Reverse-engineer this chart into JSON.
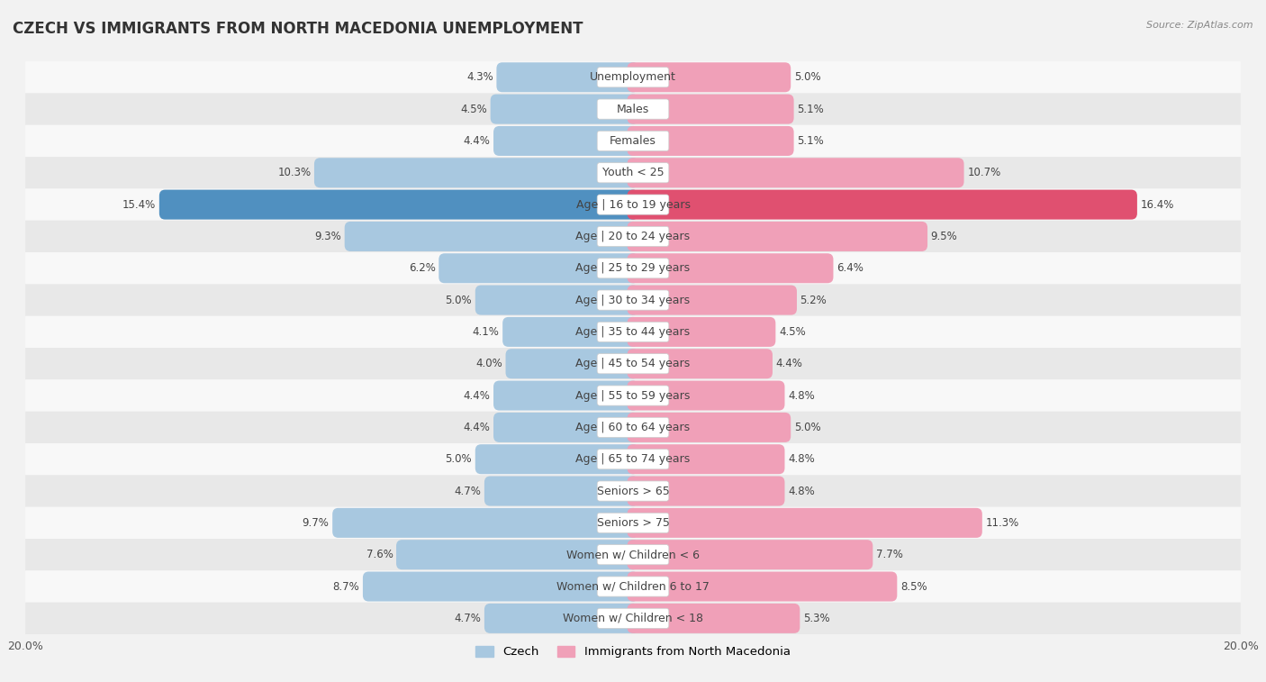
{
  "title": "CZECH VS IMMIGRANTS FROM NORTH MACEDONIA UNEMPLOYMENT",
  "source": "Source: ZipAtlas.com",
  "categories": [
    "Unemployment",
    "Males",
    "Females",
    "Youth < 25",
    "Age | 16 to 19 years",
    "Age | 20 to 24 years",
    "Age | 25 to 29 years",
    "Age | 30 to 34 years",
    "Age | 35 to 44 years",
    "Age | 45 to 54 years",
    "Age | 55 to 59 years",
    "Age | 60 to 64 years",
    "Age | 65 to 74 years",
    "Seniors > 65",
    "Seniors > 75",
    "Women w/ Children < 6",
    "Women w/ Children 6 to 17",
    "Women w/ Children < 18"
  ],
  "czech_values": [
    4.3,
    4.5,
    4.4,
    10.3,
    15.4,
    9.3,
    6.2,
    5.0,
    4.1,
    4.0,
    4.4,
    4.4,
    5.0,
    4.7,
    9.7,
    7.6,
    8.7,
    4.7
  ],
  "immigrant_values": [
    5.0,
    5.1,
    5.1,
    10.7,
    16.4,
    9.5,
    6.4,
    5.2,
    4.5,
    4.4,
    4.8,
    5.0,
    4.8,
    4.8,
    11.3,
    7.7,
    8.5,
    5.3
  ],
  "czech_color": "#a8c8e0",
  "immigrant_color": "#f0a0b8",
  "czech_highlight_color": "#5090c0",
  "immigrant_highlight_color": "#e05070",
  "highlight_rows": [
    4
  ],
  "background_color": "#f2f2f2",
  "row_color_light": "#f8f8f8",
  "row_color_dark": "#e8e8e8",
  "max_value": 20.0,
  "legend_czech": "Czech",
  "legend_immigrant": "Immigrants from North Macedonia",
  "title_fontsize": 12,
  "label_fontsize": 9,
  "value_fontsize": 8.5,
  "bar_height": 0.55
}
